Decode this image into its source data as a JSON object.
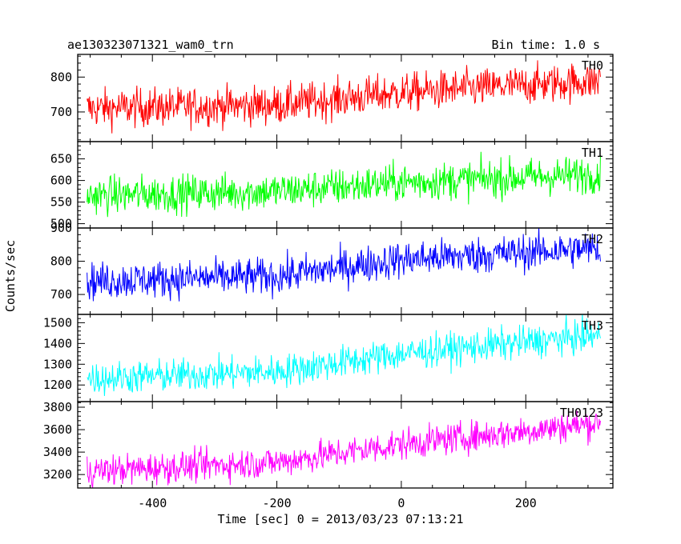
{
  "header": {
    "left_title": "ae130323071321_wam0_trn",
    "right_title": "Bin time: 1.0 s"
  },
  "axes": {
    "ylabel": "Counts/sec",
    "xlabel": "Time [sec] 0 = 2013/03/23 07:13:21"
  },
  "chart_data": {
    "type": "line",
    "title": "ae130323071321_wam0_trn",
    "subtitle": "Bin time: 1.0 s",
    "xlabel": "Time [sec] 0 = 2013/03/23 07:13:21",
    "ylabel": "Counts/sec",
    "xlim": [
      -520,
      340
    ],
    "xticks": [
      -400,
      -200,
      0,
      200
    ],
    "x_range_data": [
      -505,
      320
    ],
    "bin_time": 1.0,
    "grid": false,
    "panels": [
      {
        "name": "TH0",
        "color": "#ff0000",
        "ylim": [
          615,
          865
        ],
        "yticks": [
          700,
          800
        ],
        "trend": [
          {
            "x": -505,
            "y": 710
          },
          {
            "x": -200,
            "y": 720
          },
          {
            "x": 0,
            "y": 755
          },
          {
            "x": 320,
            "y": 790
          }
        ],
        "noise": 28
      },
      {
        "name": "TH1",
        "color": "#00ff00",
        "ylim": [
          490,
          690
        ],
        "yticks": [
          500,
          550,
          600,
          650
        ],
        "trend": [
          {
            "x": -505,
            "y": 565
          },
          {
            "x": -200,
            "y": 575
          },
          {
            "x": 0,
            "y": 595
          },
          {
            "x": 320,
            "y": 615
          }
        ],
        "noise": 22
      },
      {
        "name": "TH2",
        "color": "#0000ff",
        "ylim": [
          640,
          900
        ],
        "yticks": [
          700,
          800,
          900
        ],
        "trend": [
          {
            "x": -505,
            "y": 740
          },
          {
            "x": -200,
            "y": 755
          },
          {
            "x": 0,
            "y": 805
          },
          {
            "x": 320,
            "y": 840
          }
        ],
        "noise": 28
      },
      {
        "name": "TH3",
        "color": "#00ffff",
        "ylim": [
          1120,
          1540
        ],
        "yticks": [
          1200,
          1300,
          1400,
          1500
        ],
        "trend": [
          {
            "x": -505,
            "y": 1230
          },
          {
            "x": -200,
            "y": 1265
          },
          {
            "x": 0,
            "y": 1350
          },
          {
            "x": 320,
            "y": 1440
          }
        ],
        "noise": 40
      },
      {
        "name": "TH0123",
        "color": "#ff00ff",
        "ylim": [
          3080,
          3850
        ],
        "yticks": [
          3200,
          3400,
          3600,
          3800
        ],
        "trend": [
          {
            "x": -505,
            "y": 3230
          },
          {
            "x": -200,
            "y": 3310
          },
          {
            "x": 0,
            "y": 3470
          },
          {
            "x": 320,
            "y": 3660
          }
        ],
        "noise": 70
      }
    ]
  }
}
